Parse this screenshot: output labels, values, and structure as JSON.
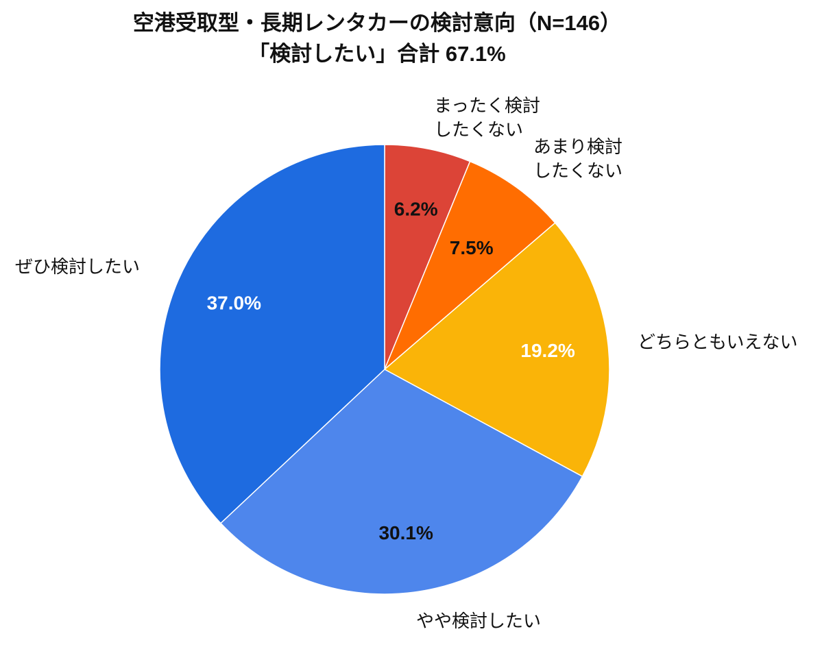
{
  "title": {
    "line1": "空港受取型・長期レンタカーの検討意向（N=146）",
    "line2": "「検討したい」合計 67.1%"
  },
  "chart_data": {
    "type": "pie",
    "title": "空港受取型・長期レンタカーの検討意向（N=146）「検討したい」合計 67.1%",
    "n": 146,
    "total_consider_pct": 67.1,
    "start_angle_deg": 0,
    "direction": "clockwise",
    "legend_position": "outside-callouts",
    "slices": [
      {
        "label": "まったく検討したくない",
        "value": 6.2,
        "pct_label": "6.2%",
        "color": "#DC4437",
        "pct_text_color": "#111111",
        "label_radius_frac": 0.72
      },
      {
        "label": "あまり検討したくない",
        "value": 7.5,
        "pct_label": "7.5%",
        "color": "#FF6D01",
        "pct_text_color": "#111111",
        "label_radius_frac": 0.66
      },
      {
        "label": "どちらともいえない",
        "value": 19.2,
        "pct_label": "19.2%",
        "color": "#FAB408",
        "pct_text_color": "#ffffff",
        "label_radius_frac": 0.73
      },
      {
        "label": "やや検討したい",
        "value": 30.1,
        "pct_label": "30.1%",
        "color": "#4E86EC",
        "pct_text_color": "#111111",
        "label_radius_frac": 0.74
      },
      {
        "label": "ぜひ検討したい",
        "value": 37.0,
        "pct_label": "37.0%",
        "color": "#1E6BE0",
        "pct_text_color": "#ffffff",
        "label_radius_frac": 0.73
      }
    ]
  },
  "callouts": [
    {
      "text": "まったく検討\nしたくない"
    },
    {
      "text": "あまり検討\nしたくない"
    },
    {
      "text": "どちらともいえない"
    },
    {
      "text": "やや検討したい"
    },
    {
      "text": "ぜひ検討したい"
    }
  ]
}
